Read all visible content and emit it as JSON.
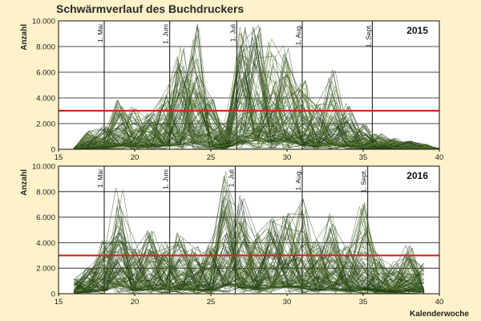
{
  "title": "Schwärmverlauf des Buchdruckers",
  "colors": {
    "background": "#fdf2c9",
    "plot_background": "#ffffff",
    "line": "#5a7a2e",
    "line_dark": "#1e3a12",
    "threshold": "#cc2b1e",
    "grid": "#111111"
  },
  "chart_data": [
    {
      "type": "line",
      "year_label": "2015",
      "ylabel": "Anzahl",
      "xlabel": "",
      "xlim": [
        15,
        40
      ],
      "ylim": [
        0,
        10000
      ],
      "x_ticks": [
        "15",
        "20",
        "25",
        "30",
        "35",
        "40"
      ],
      "y_ticks": [
        "0",
        "2.000",
        "4.000",
        "6.000",
        "8.000",
        "10.000"
      ],
      "threshold": 3000,
      "data_last_week": 40,
      "month_markers": [
        {
          "x": 18,
          "label": "1. Mai"
        },
        {
          "x": 22.3,
          "label": "1. Juni"
        },
        {
          "x": 26.7,
          "label": "1. Juli"
        },
        {
          "x": 31,
          "label": "1. Aug."
        },
        {
          "x": 35.6,
          "label": "1. Sept."
        }
      ],
      "grid": "horizontal",
      "series_count": 100,
      "envelope": {
        "x": [
          15,
          16,
          17,
          18,
          19,
          20,
          21,
          22,
          23,
          24,
          25,
          26,
          27,
          28,
          29,
          30,
          31,
          32,
          33,
          34,
          35,
          36,
          37,
          38,
          39,
          40
        ],
        "max": [
          0,
          150,
          1500,
          1900,
          4000,
          3500,
          2800,
          4400,
          8000,
          10000,
          4000,
          2200,
          9600,
          10000,
          8700,
          8600,
          5500,
          3800,
          6500,
          3700,
          2000,
          1300,
          900,
          700,
          400,
          100
        ],
        "typical": [
          0,
          50,
          500,
          700,
          1300,
          1000,
          700,
          1300,
          1600,
          2400,
          800,
          600,
          2200,
          3300,
          2800,
          3200,
          1700,
          1000,
          1500,
          1000,
          400,
          300,
          200,
          150,
          80,
          0
        ]
      }
    },
    {
      "type": "line",
      "year_label": "2016",
      "ylabel": "Anzahl",
      "xlabel": "Kalenderwoche",
      "xlim": [
        15,
        40
      ],
      "ylim": [
        0,
        10000
      ],
      "x_ticks": [
        "15",
        "20",
        "25",
        "30",
        "35",
        "40"
      ],
      "y_ticks": [
        "0",
        "2.000",
        "4.000",
        "6.000",
        "8.000",
        "10.000"
      ],
      "threshold": 3000,
      "data_last_week": 39,
      "month_markers": [
        {
          "x": 18,
          "label": "1. Mai"
        },
        {
          "x": 22.3,
          "label": "1. Juni"
        },
        {
          "x": 26.6,
          "label": "1. Juli"
        },
        {
          "x": 31,
          "label": "1. Aug."
        },
        {
          "x": 35.3,
          "label": "1. Sept."
        }
      ],
      "grid": "horizontal",
      "series_count": 100,
      "envelope": {
        "x": [
          15,
          16,
          17,
          18,
          19,
          20,
          21,
          22,
          23,
          24,
          25,
          26,
          27,
          28,
          29,
          30,
          31,
          32,
          33,
          34,
          35,
          36,
          37,
          38,
          39
        ],
        "max": [
          0,
          1300,
          2000,
          4500,
          9200,
          3700,
          5000,
          4200,
          5000,
          3700,
          4000,
          10000,
          7800,
          5000,
          6000,
          6300,
          7500,
          4300,
          6300,
          3800,
          7200,
          3000,
          2500,
          3900,
          2400
        ],
        "typical": [
          0,
          300,
          600,
          1300,
          3000,
          1200,
          1500,
          1700,
          1600,
          1200,
          1300,
          3500,
          2300,
          1500,
          2200,
          2600,
          2100,
          1300,
          1700,
          1100,
          1300,
          700,
          600,
          900,
          500
        ]
      }
    }
  ]
}
